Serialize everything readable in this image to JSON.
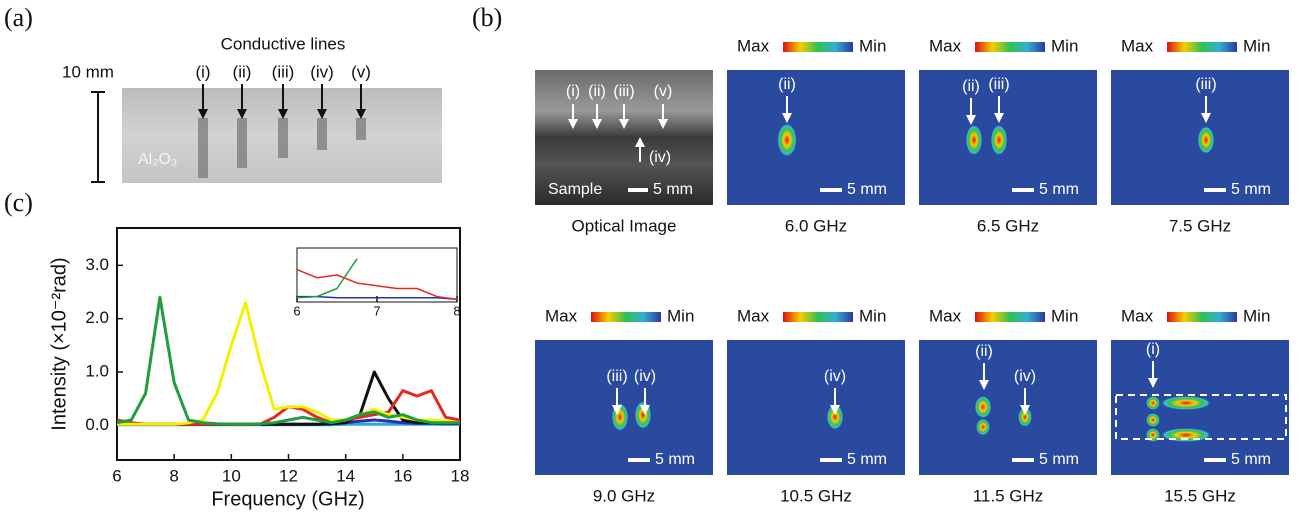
{
  "panel_a": {
    "label": "(a)",
    "title": "Conductive lines",
    "scale": "10 mm",
    "lines": [
      "(i)",
      "(ii)",
      "(iii)",
      "(iv)",
      "(v)"
    ],
    "substrate": "Al₂O₃"
  },
  "panel_b": {
    "label": "(b)",
    "optical": {
      "caption": "Optical Image",
      "sample": "Sample",
      "scale": "5 mm",
      "markers": [
        "(i)",
        "(ii)",
        "(iii)",
        "(v)",
        "(iv)"
      ]
    },
    "maps": [
      {
        "caption": "6.0 GHz",
        "max": "Max",
        "min": "Min",
        "scale": "5 mm",
        "markers": [
          "(ii)"
        ]
      },
      {
        "caption": "6.5 GHz",
        "max": "Max",
        "min": "Min",
        "scale": "5 mm",
        "markers": [
          "(ii)",
          "(iii)"
        ]
      },
      {
        "caption": "7.5 GHz",
        "max": "Max",
        "min": "Min",
        "scale": "5 mm",
        "markers": [
          "(iii)"
        ]
      },
      {
        "caption": "9.0 GHz",
        "max": "Max",
        "min": "Min",
        "scale": "5 mm",
        "markers": [
          "(iii)",
          "(iv)"
        ]
      },
      {
        "caption": "10.5 GHz",
        "max": "Max",
        "min": "Min",
        "scale": "5 mm",
        "markers": [
          "(iv)"
        ]
      },
      {
        "caption": "11.5 GHz",
        "max": "Max",
        "min": "Min",
        "scale": "5 mm",
        "markers": [
          "(ii)",
          "(iv)"
        ]
      },
      {
        "caption": "15.5 GHz",
        "max": "Max",
        "min": "Min",
        "scale": "5 mm",
        "markers": [
          "(i)"
        ]
      }
    ]
  },
  "panel_c": {
    "label": "(c)"
  },
  "chart_data": [
    {
      "type": "line",
      "x_label": "Frequency (GHz)",
      "y_label": "Intensity (×10⁻²rad)",
      "xlim": [
        6,
        18
      ],
      "xticks": [
        6,
        8,
        10,
        12,
        14,
        16,
        18
      ],
      "ylim": [
        -0.65,
        3.7
      ],
      "yticks": [
        {
          "value": 0,
          "label": "0.0"
        },
        {
          "value": 1,
          "label": "1.0"
        },
        {
          "value": 2,
          "label": "2.0"
        },
        {
          "value": 3,
          "label": "3.0"
        }
      ],
      "x": [
        6,
        6.5,
        7,
        7.5,
        8,
        8.5,
        9,
        9.5,
        10,
        10.5,
        11,
        11.5,
        12,
        12.5,
        13,
        13.5,
        14,
        14.5,
        15,
        15.5,
        16,
        16.5,
        17,
        17.5,
        18
      ],
      "series": [
        {
          "color": "#2aa8d8",
          "values": [
            0.01,
            0.01,
            0.01,
            0.01,
            0.01,
            0.01,
            0.01,
            0.01,
            0.01,
            0.01,
            0.01,
            0.01,
            0.01,
            0.01,
            0.01,
            0.01,
            0.02,
            0.02,
            0.02,
            0.02,
            0.02,
            0.02,
            0.02,
            0.02,
            0.02
          ]
        },
        {
          "color": "#2233aa",
          "values": [
            0.03,
            0.03,
            0.02,
            0.02,
            0.02,
            0.02,
            0.02,
            0.02,
            0.02,
            0.02,
            0.02,
            0.02,
            0.02,
            0.02,
            0.02,
            0.03,
            0.05,
            0.08,
            0.1,
            0.08,
            0.05,
            0.04,
            0.04,
            0.03,
            0.03
          ]
        },
        {
          "color": "#111111",
          "values": [
            0.02,
            0.02,
            0.02,
            0.02,
            0.02,
            0.02,
            0.02,
            0.02,
            0.02,
            0.02,
            0.02,
            0.02,
            0.02,
            0.02,
            0.02,
            0.03,
            0.05,
            0.2,
            1.0,
            0.5,
            0.1,
            0.05,
            0.05,
            0.05,
            0.05
          ]
        },
        {
          "color": "#e8281e",
          "values": [
            0.1,
            0.05,
            0.02,
            0.02,
            0.02,
            0.02,
            0.02,
            0.02,
            0.02,
            0.02,
            0.02,
            0.15,
            0.35,
            0.3,
            0.15,
            0.05,
            0.1,
            0.15,
            0.2,
            0.25,
            0.65,
            0.55,
            0.65,
            0.15,
            0.1
          ]
        },
        {
          "color": "#f2f200",
          "values": [
            0.02,
            0.02,
            0.02,
            0.02,
            0.02,
            0.05,
            0.1,
            0.6,
            1.5,
            2.3,
            1.2,
            0.3,
            0.35,
            0.35,
            0.25,
            0.1,
            0.1,
            0.2,
            0.3,
            0.2,
            0.15,
            0.1,
            0.1,
            0.08,
            0.05
          ]
        },
        {
          "color": "#1e9e3e",
          "values": [
            0.05,
            0.1,
            0.6,
            2.4,
            0.8,
            0.1,
            0.05,
            0.03,
            0.02,
            0.02,
            0.03,
            0.05,
            0.1,
            0.15,
            0.1,
            0.05,
            0.1,
            0.2,
            0.25,
            0.15,
            0.2,
            0.1,
            0.05,
            0.05,
            0.05
          ]
        }
      ]
    },
    {
      "type": "line",
      "xlim": [
        6,
        8
      ],
      "xticks": [
        6,
        7,
        8
      ],
      "ylim": [
        0,
        1
      ],
      "x": [
        6,
        6.25,
        6.5,
        6.75,
        7,
        7.25,
        7.5,
        7.75,
        8
      ],
      "series": [
        {
          "color": "#2233aa",
          "values": [
            0.1,
            0.1,
            0.08,
            0.08,
            0.08,
            0.08,
            0.08,
            0.08,
            0.05
          ]
        },
        {
          "color": "#e8281e",
          "values": [
            0.6,
            0.45,
            0.5,
            0.35,
            0.3,
            0.25,
            0.25,
            0.1,
            0.05
          ]
        },
        {
          "color": "#1e9e3e",
          "values": [
            0.08,
            0.1,
            0.25,
            0.8,
            null,
            null,
            null,
            null,
            null
          ]
        }
      ]
    }
  ]
}
